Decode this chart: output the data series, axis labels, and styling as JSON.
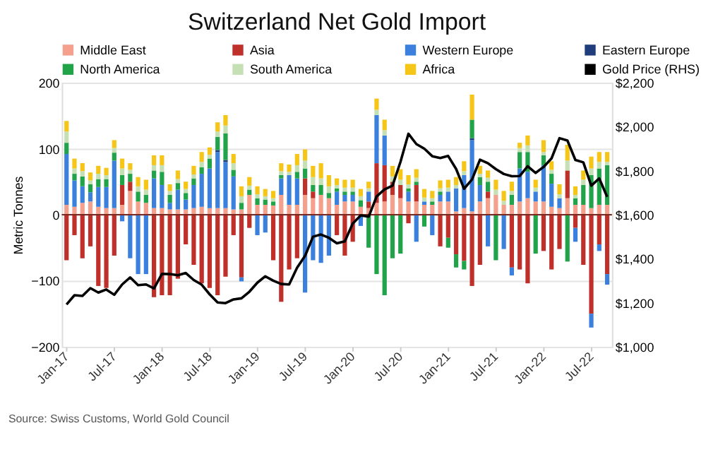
{
  "chart_data": {
    "type": "bar",
    "stacked": true,
    "title": "Switzerland Net Gold Import",
    "ylabel": "Metric Tonnes",
    "annotations": [
      "Source: Swiss Customs, World Gold Council"
    ],
    "categories": [
      "Jan-17",
      null,
      null,
      null,
      null,
      null,
      "Jul-17",
      null,
      null,
      null,
      null,
      null,
      "Jan-18",
      null,
      null,
      null,
      null,
      null,
      "Jul-18",
      null,
      null,
      null,
      null,
      null,
      "Jan-19",
      null,
      null,
      null,
      null,
      null,
      "Jul-19",
      null,
      null,
      null,
      null,
      null,
      "Jan-20",
      null,
      null,
      null,
      null,
      null,
      "Jul-20",
      null,
      null,
      null,
      null,
      null,
      "Jan-21",
      null,
      null,
      null,
      null,
      null,
      "Jul-21",
      null,
      null,
      null,
      null,
      null,
      "Jan-22",
      null,
      null,
      null,
      null,
      null,
      "Jul-22",
      null,
      null
    ],
    "ylim": [
      -200,
      200
    ],
    "yticks": [
      -200,
      -100,
      0,
      100,
      200
    ],
    "y2lim": [
      1000,
      2200
    ],
    "y2ticks": [
      {
        "value": 1000,
        "label": "$1,000"
      },
      {
        "value": 1200,
        "label": "$1,200"
      },
      {
        "value": 1400,
        "label": "$1,400"
      },
      {
        "value": 1600,
        "label": "$1,600"
      },
      {
        "value": 1800,
        "label": "$1,800"
      },
      {
        "value": 2000,
        "label": "$2,000"
      },
      {
        "value": 2200,
        "label": "$2,200"
      }
    ],
    "grid": "y",
    "legend": "top",
    "ref_lines": [
      {
        "axis": "y",
        "value": 0,
        "color": "#7a2a20"
      }
    ],
    "series": [
      {
        "name": "Middle East",
        "color": "#f4a08c",
        "values": [
          15,
          12,
          18,
          20,
          12,
          10,
          10,
          15,
          36,
          20,
          18,
          10,
          10,
          8,
          8,
          8,
          10,
          12,
          10,
          10,
          10,
          8,
          8,
          30,
          15,
          15,
          14,
          30,
          15,
          15,
          30,
          25,
          30,
          25,
          15,
          20,
          20,
          12,
          10,
          18,
          20,
          30,
          25,
          20,
          20,
          15,
          15,
          20,
          20,
          5,
          10,
          5,
          20,
          25,
          30,
          15,
          15,
          20,
          25,
          20,
          20,
          12,
          10,
          25,
          15,
          15,
          10,
          15,
          15
        ]
      },
      {
        "name": "Asia",
        "color": "#c0302b",
        "values": [
          -69,
          -31,
          -66,
          -48,
          -108,
          -111,
          -62,
          30,
          14,
          null,
          null,
          -125,
          -122,
          -122,
          -97,
          -45,
          -76,
          -104,
          -111,
          -122,
          -94,
          -31,
          -95,
          -20,
          null,
          null,
          -69,
          -132,
          -83,
          -66,
          25,
          10,
          null,
          null,
          -31,
          -62,
          -41,
          null,
          10,
          60,
          55,
          20,
          20,
          -13,
          25,
          null,
          null,
          -48,
          -35,
          -60,
          -70,
          -108,
          -76,
          10,
          null,
          null,
          -80,
          -83,
          -104,
          null,
          -55,
          -83,
          -52,
          42,
          -20,
          -76,
          -150,
          -45,
          -90
        ]
      },
      {
        "name": "Western Europe",
        "color": "#3a80dc",
        "values": [
          77,
          40,
          25,
          14,
          30,
          32,
          72,
          -10,
          -66,
          -90,
          -90,
          45,
          35,
          10,
          30,
          15,
          35,
          50,
          60,
          85,
          70,
          50,
          -6,
          null,
          -31,
          -27,
          null,
          25,
          45,
          40,
          -118,
          -69,
          -73,
          -62,
          20,
          10,
          10,
          -17,
          15,
          73,
          45,
          null,
          null,
          15,
          -41,
          5,
          -31,
          10,
          15,
          35,
          50,
          108,
          25,
          -48,
          null,
          -52,
          -12,
          50,
          40,
          15,
          55,
          35,
          15,
          null,
          -21,
          null,
          -21,
          -10,
          -16
        ]
      },
      {
        "name": "Eastern Europe",
        "color": "#1f3d7a",
        "values": [
          null,
          null,
          null,
          null,
          null,
          null,
          null,
          null,
          null,
          null,
          null,
          null,
          null,
          null,
          null,
          null,
          null,
          null,
          null,
          3,
          3,
          null,
          null,
          null,
          null,
          null,
          null,
          null,
          null,
          null,
          null,
          null,
          null,
          null,
          null,
          null,
          null,
          null,
          null,
          null,
          null,
          null,
          null,
          null,
          null,
          null,
          null,
          null,
          null,
          null,
          null,
          3,
          null,
          null,
          null,
          null,
          null,
          null,
          null,
          null,
          null,
          null,
          null,
          null,
          null,
          null,
          null,
          null,
          null
        ]
      },
      {
        "name": "North America",
        "color": "#21a34a",
        "values": [
          17,
          10,
          15,
          12,
          12,
          12,
          12,
          15,
          12,
          15,
          12,
          12,
          20,
          12,
          10,
          10,
          10,
          10,
          15,
          20,
          40,
          10,
          10,
          8,
          10,
          8,
          6,
          5,
          null,
          10,
          15,
          10,
          15,
          8,
          5,
          5,
          5,
          10,
          -50,
          -90,
          -122,
          -66,
          -59,
          5,
          5,
          -18,
          5,
          5,
          -15,
          -20,
          -13,
          28,
          12,
          15,
          -69,
          null,
          15,
          25,
          30,
          -59,
          15,
          15,
          null,
          -71,
          10,
          30,
          50,
          55,
          60
        ]
      },
      {
        "name": "South America",
        "color": "#c5e0b4",
        "values": [
          17,
          8,
          8,
          6,
          8,
          6,
          7,
          10,
          6,
          8,
          8,
          8,
          10,
          6,
          6,
          6,
          6,
          8,
          6,
          8,
          12,
          10,
          10,
          6,
          6,
          5,
          5,
          6,
          5,
          10,
          12,
          12,
          10,
          10,
          5,
          6,
          6,
          6,
          5,
          8,
          8,
          8,
          8,
          6,
          6,
          6,
          5,
          5,
          6,
          5,
          6,
          null,
          5,
          6,
          8,
          6,
          6,
          6,
          10,
          6,
          5,
          6,
          6,
          15,
          5,
          8,
          10,
          10,
          5
        ]
      },
      {
        "name": "Africa",
        "color": "#f5c518",
        "values": [
          16,
          15,
          12,
          12,
          12,
          11,
          12,
          15,
          10,
          14,
          15,
          15,
          15,
          10,
          13,
          11,
          13,
          15,
          11,
          14,
          16,
          14,
          15,
          13,
          12,
          11,
          11,
          12,
          11,
          17,
          17,
          17,
          23,
          17,
          10,
          12,
          12,
          11,
          10,
          17,
          16,
          16,
          16,
          14,
          13,
          13,
          11,
          12,
          12,
          12,
          15,
          38,
          12,
          11,
          15,
          15,
          14,
          8,
          15,
          12,
          18,
          13,
          15,
          24,
          13,
          14,
          18,
          15,
          15
        ]
      },
      {
        "name": "Gold Price (RHS)",
        "type": "line",
        "axis": "y2",
        "color": "#000000",
        "values": [
          1192,
          1234,
          1231,
          1266,
          1246,
          1260,
          1236,
          1283,
          1315,
          1280,
          1283,
          1265,
          1331,
          1330,
          1325,
          1335,
          1303,
          1282,
          1238,
          1201,
          1198,
          1215,
          1220,
          1250,
          1291,
          1320,
          1300,
          1285,
          1283,
          1359,
          1413,
          1500,
          1510,
          1495,
          1470,
          1479,
          1560,
          1597,
          1591,
          1683,
          1715,
          1732,
          1840,
          1968,
          1921,
          1900,
          1866,
          1858,
          1867,
          1808,
          1718,
          1760,
          1850,
          1834,
          1807,
          1785,
          1775,
          1776,
          1820,
          1790,
          1817,
          1856,
          1948,
          1937,
          1849,
          1838,
          1732,
          1765,
          1681
        ]
      }
    ]
  }
}
